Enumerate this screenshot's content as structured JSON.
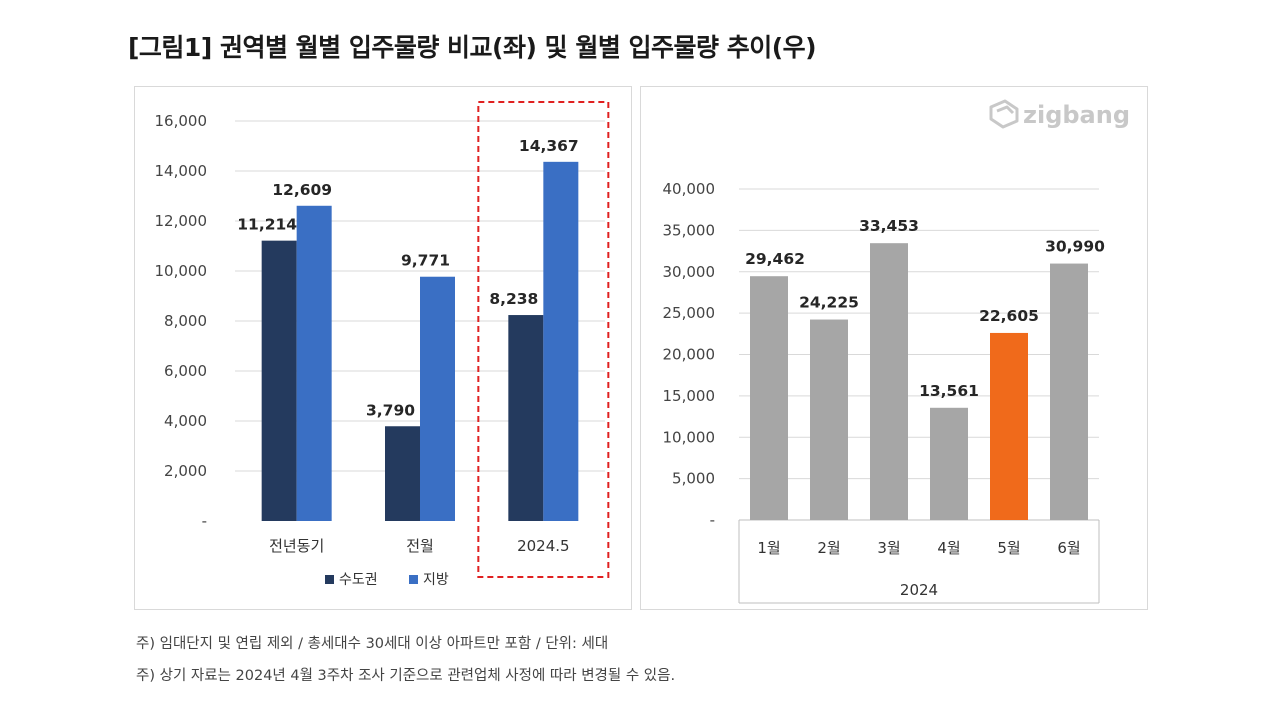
{
  "page": {
    "title": "[그림1] 권역별 월별 입주물량 비교(좌) 및 월별 입주물량 추이(우)",
    "notes": [
      "주) 임대단지 및 연립 제외 / 총세대수 30세대 이상 아파트만 포함 / 단위: 세대",
      "주) 상기 자료는 2024년 4월 3주차 조사 기준으로 관련업체 사정에 따라 변경될 수 있음."
    ],
    "logo": {
      "text": "zigbang",
      "icon": "zigbang-logo-icon",
      "color": "#c8c8c8"
    }
  },
  "chart_data": [
    {
      "type": "bar",
      "categories": [
        "전년동기",
        "전월",
        "2024.5"
      ],
      "series": [
        {
          "name": "수도권",
          "values": [
            11214,
            3790,
            8238
          ],
          "labels": [
            "11,214",
            "3,790",
            "8,238"
          ],
          "color": "#243a5e"
        },
        {
          "name": "지방",
          "values": [
            12609,
            9771,
            14367
          ],
          "labels": [
            "12,609",
            "9,771",
            "14,367"
          ],
          "color": "#3a6fc4"
        }
      ],
      "ylim": [
        0,
        16000
      ],
      "yticks": [
        0,
        2000,
        4000,
        6000,
        8000,
        10000,
        12000,
        14000,
        16000
      ],
      "ytick_labels": [
        "-",
        "2,000",
        "4,000",
        "6,000",
        "8,000",
        "10,000",
        "12,000",
        "14,000",
        "16,000"
      ],
      "grid": true,
      "legend": "bottom",
      "highlight": {
        "category": "2024.5",
        "style": "dashed-box",
        "color": "#e02020"
      }
    },
    {
      "type": "bar",
      "categories": [
        "1월",
        "2월",
        "3월",
        "4월",
        "5월",
        "6월"
      ],
      "group_label": "2024",
      "series": [
        {
          "values": [
            29462,
            24225,
            33453,
            13561,
            22605,
            30990
          ],
          "labels": [
            "29,462",
            "24,225",
            "33,453",
            "13,561",
            "22,605",
            "30,990"
          ],
          "color": "#a6a6a6"
        }
      ],
      "highlight_index": 4,
      "highlight_color": "#f06a1b",
      "ylim": [
        0,
        40000
      ],
      "yticks": [
        0,
        5000,
        10000,
        15000,
        20000,
        25000,
        30000,
        35000,
        40000
      ],
      "ytick_labels": [
        "-",
        "5,000",
        "10,000",
        "15,000",
        "20,000",
        "25,000",
        "30,000",
        "35,000",
        "40,000"
      ],
      "grid": true
    }
  ]
}
